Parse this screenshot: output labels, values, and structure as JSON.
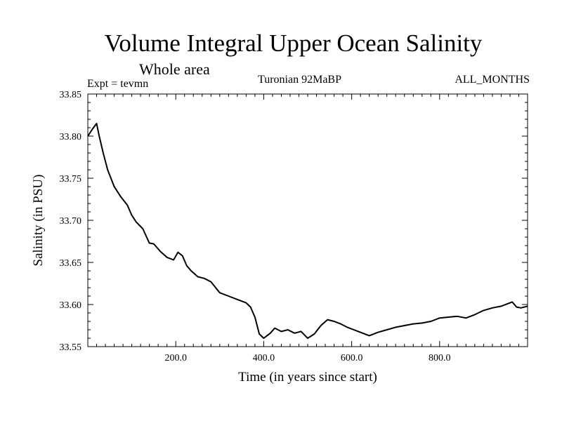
{
  "header": {
    "title": "Volume Integral Upper Ocean Salinity",
    "subtitle": "Whole area",
    "experiment": "Expt = tevmn",
    "experiment_name": "Turonian  92MaBP",
    "months": "ALL_MONTHS"
  },
  "chart_data": {
    "type": "line",
    "title": "Volume Integral Upper Ocean Salinity",
    "subtitle": "Whole area",
    "xlabel": "Time (in years since start)",
    "ylabel": "Salinity (in PSU)",
    "xlim": [
      0,
      1000
    ],
    "ylim": [
      33.55,
      33.85
    ],
    "grid": false,
    "xticks": [
      200,
      400,
      600,
      800
    ],
    "xtick_labels": [
      "200.0",
      "400.0",
      "600.0",
      "800.0"
    ],
    "yticks": [
      33.55,
      33.6,
      33.65,
      33.7,
      33.75,
      33.8,
      33.85
    ],
    "ytick_labels": [
      "33.55",
      "33.60",
      "33.65",
      "33.70",
      "33.75",
      "33.80",
      "33.85"
    ],
    "series": [
      {
        "name": "Salinity",
        "x": [
          0,
          10,
          20,
          25,
          35,
          45,
          60,
          75,
          90,
          100,
          110,
          125,
          140,
          150,
          165,
          180,
          195,
          205,
          215,
          225,
          235,
          250,
          265,
          280,
          300,
          320,
          340,
          360,
          370,
          380,
          390,
          400,
          415,
          425,
          440,
          455,
          470,
          485,
          500,
          515,
          530,
          545,
          560,
          575,
          590,
          605,
          620,
          640,
          660,
          680,
          700,
          720,
          740,
          760,
          780,
          800,
          820,
          840,
          860,
          880,
          900,
          920,
          940,
          955,
          965,
          975,
          985,
          1000
        ],
        "y": [
          33.8,
          33.808,
          33.815,
          33.802,
          33.78,
          33.76,
          33.74,
          33.728,
          33.718,
          33.706,
          33.698,
          33.69,
          33.673,
          33.672,
          33.663,
          33.656,
          33.653,
          33.662,
          33.658,
          33.646,
          33.64,
          33.633,
          33.631,
          33.627,
          33.614,
          33.61,
          33.606,
          33.602,
          33.597,
          33.585,
          33.565,
          33.56,
          33.566,
          33.572,
          33.568,
          33.57,
          33.566,
          33.568,
          33.56,
          33.565,
          33.575,
          33.582,
          33.58,
          33.577,
          33.573,
          33.57,
          33.567,
          33.563,
          33.567,
          33.57,
          33.573,
          33.575,
          33.577,
          33.578,
          33.58,
          33.584,
          33.585,
          33.586,
          33.584,
          33.588,
          33.593,
          33.596,
          33.598,
          33.601,
          33.603,
          33.597,
          33.596,
          33.598
        ]
      }
    ]
  }
}
